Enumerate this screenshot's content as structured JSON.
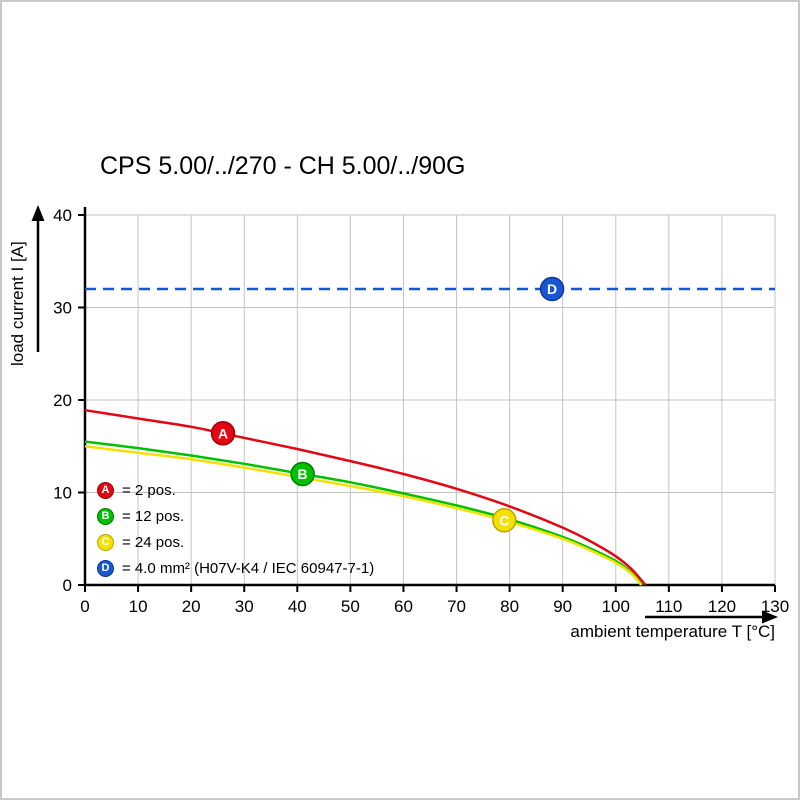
{
  "chart_data": {
    "type": "line",
    "title": "CPS 5.00/../270 - CH 5.00/../90G",
    "xlabel": "ambient temperature T [°C]",
    "ylabel": "load current I [A]",
    "xlim": [
      0,
      130
    ],
    "ylim": [
      0,
      40
    ],
    "xticks": [
      0,
      10,
      20,
      30,
      40,
      50,
      60,
      70,
      80,
      90,
      100,
      110,
      120,
      130
    ],
    "yticks": [
      0,
      10,
      20,
      30,
      40
    ],
    "grid": true,
    "legend_position": "inside bottom-left",
    "colors": {
      "grid": "#c3c3c3",
      "axis": "#000000",
      "background": "#ffffff"
    },
    "series": [
      {
        "name": "A",
        "label": "= 2 pos.",
        "color": "#e30613",
        "ring": "#9e0008",
        "dashed": false,
        "marker": {
          "x": 26,
          "y": 16.4
        },
        "points": [
          [
            0,
            18.9
          ],
          [
            10,
            18.0
          ],
          [
            20,
            17.1
          ],
          [
            30,
            15.9
          ],
          [
            40,
            14.7
          ],
          [
            50,
            13.4
          ],
          [
            60,
            12.0
          ],
          [
            70,
            10.4
          ],
          [
            80,
            8.5
          ],
          [
            90,
            6.2
          ],
          [
            95,
            4.8
          ],
          [
            100,
            3.1
          ],
          [
            103,
            1.7
          ],
          [
            105,
            0.4
          ],
          [
            105.6,
            0
          ]
        ]
      },
      {
        "name": "B",
        "label": "= 12 pos.",
        "color": "#00c000",
        "ring": "#007a00",
        "dashed": false,
        "marker": {
          "x": 41,
          "y": 12.0
        },
        "points": [
          [
            0,
            15.5
          ],
          [
            10,
            14.8
          ],
          [
            20,
            14.0
          ],
          [
            30,
            13.1
          ],
          [
            40,
            12.1
          ],
          [
            50,
            11.1
          ],
          [
            60,
            9.9
          ],
          [
            70,
            8.6
          ],
          [
            80,
            7.1
          ],
          [
            90,
            5.2
          ],
          [
            95,
            4.0
          ],
          [
            100,
            2.6
          ],
          [
            103,
            1.3
          ],
          [
            105,
            0
          ]
        ]
      },
      {
        "name": "C",
        "label": "= 24 pos.",
        "color": "#f5e003",
        "ring": "#b8a600",
        "dashed": false,
        "marker": {
          "x": 79,
          "y": 7.0
        },
        "points": [
          [
            0,
            15.0
          ],
          [
            10,
            14.3
          ],
          [
            20,
            13.6
          ],
          [
            30,
            12.7
          ],
          [
            40,
            11.7
          ],
          [
            50,
            10.7
          ],
          [
            60,
            9.6
          ],
          [
            70,
            8.3
          ],
          [
            80,
            6.8
          ],
          [
            90,
            5.0
          ],
          [
            95,
            3.8
          ],
          [
            100,
            2.4
          ],
          [
            103,
            1.2
          ],
          [
            104.8,
            0
          ]
        ]
      },
      {
        "name": "D",
        "label": "= 4.0 mm² (H07V-K4 / IEC 60947-7-1)",
        "color": "#1957d2",
        "ring": "#0b349c",
        "dashed": true,
        "marker": {
          "x": 88,
          "y": 32
        },
        "points": [
          [
            0,
            32
          ],
          [
            130,
            32
          ]
        ]
      }
    ]
  }
}
